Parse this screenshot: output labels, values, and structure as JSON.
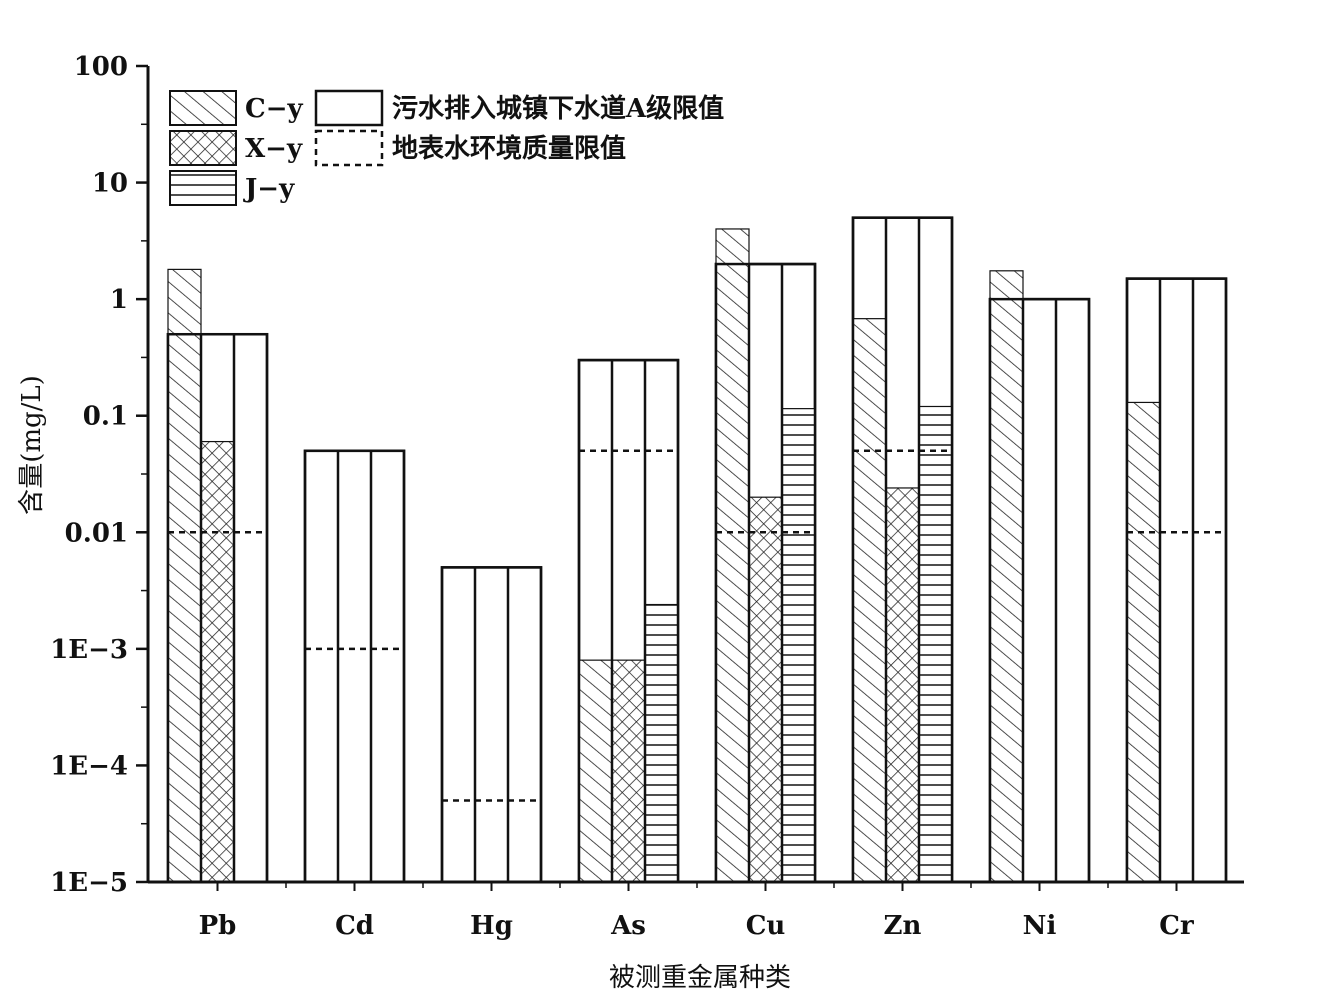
{
  "chart_data": {
    "type": "bar",
    "title": "",
    "xlabel": "被测重金属种类",
    "ylabel": "含量(mg/L)",
    "yscale": "log",
    "ylim": [
      1e-05,
      100
    ],
    "yticks": [
      {
        "value": 100,
        "label": "100"
      },
      {
        "value": 10,
        "label": "10"
      },
      {
        "value": 1,
        "label": "1"
      },
      {
        "value": 0.1,
        "label": "0.1"
      },
      {
        "value": 0.01,
        "label": "0.01"
      },
      {
        "value": 0.001,
        "label": "1E−3"
      },
      {
        "value": 0.0001,
        "label": "1E−4"
      },
      {
        "value": 1e-05,
        "label": "1E−5"
      }
    ],
    "categories": [
      "Pb",
      "Cd",
      "Hg",
      "As",
      "Cu",
      "Zn",
      "Ni",
      "Cr"
    ],
    "series": [
      {
        "name": "C−y",
        "pattern": "diagonal-hatch",
        "values": [
          1.8,
          null,
          null,
          0.0008,
          4.0,
          0.68,
          1.75,
          0.13
        ]
      },
      {
        "name": "X−y",
        "pattern": "cross-hatch",
        "values": [
          0.06,
          null,
          null,
          0.0008,
          0.02,
          0.024,
          null,
          null
        ]
      },
      {
        "name": "J−y",
        "pattern": "horizontal-lines",
        "values": [
          null,
          null,
          null,
          0.0024,
          0.115,
          0.12,
          null,
          null
        ]
      }
    ],
    "limits": [
      {
        "name": "污水排入城镇下水道A级限值",
        "style": "solid-outline",
        "values": [
          0.5,
          0.05,
          0.005,
          0.3,
          2.0,
          5.0,
          1.0,
          1.5
        ]
      },
      {
        "name": "地表水环境质量限值",
        "style": "dashed",
        "values": [
          0.01,
          0.001,
          5e-05,
          0.05,
          0.01,
          0.05,
          null,
          0.01
        ]
      }
    ],
    "legend": {
      "position": "top-left"
    },
    "grid": false
  }
}
